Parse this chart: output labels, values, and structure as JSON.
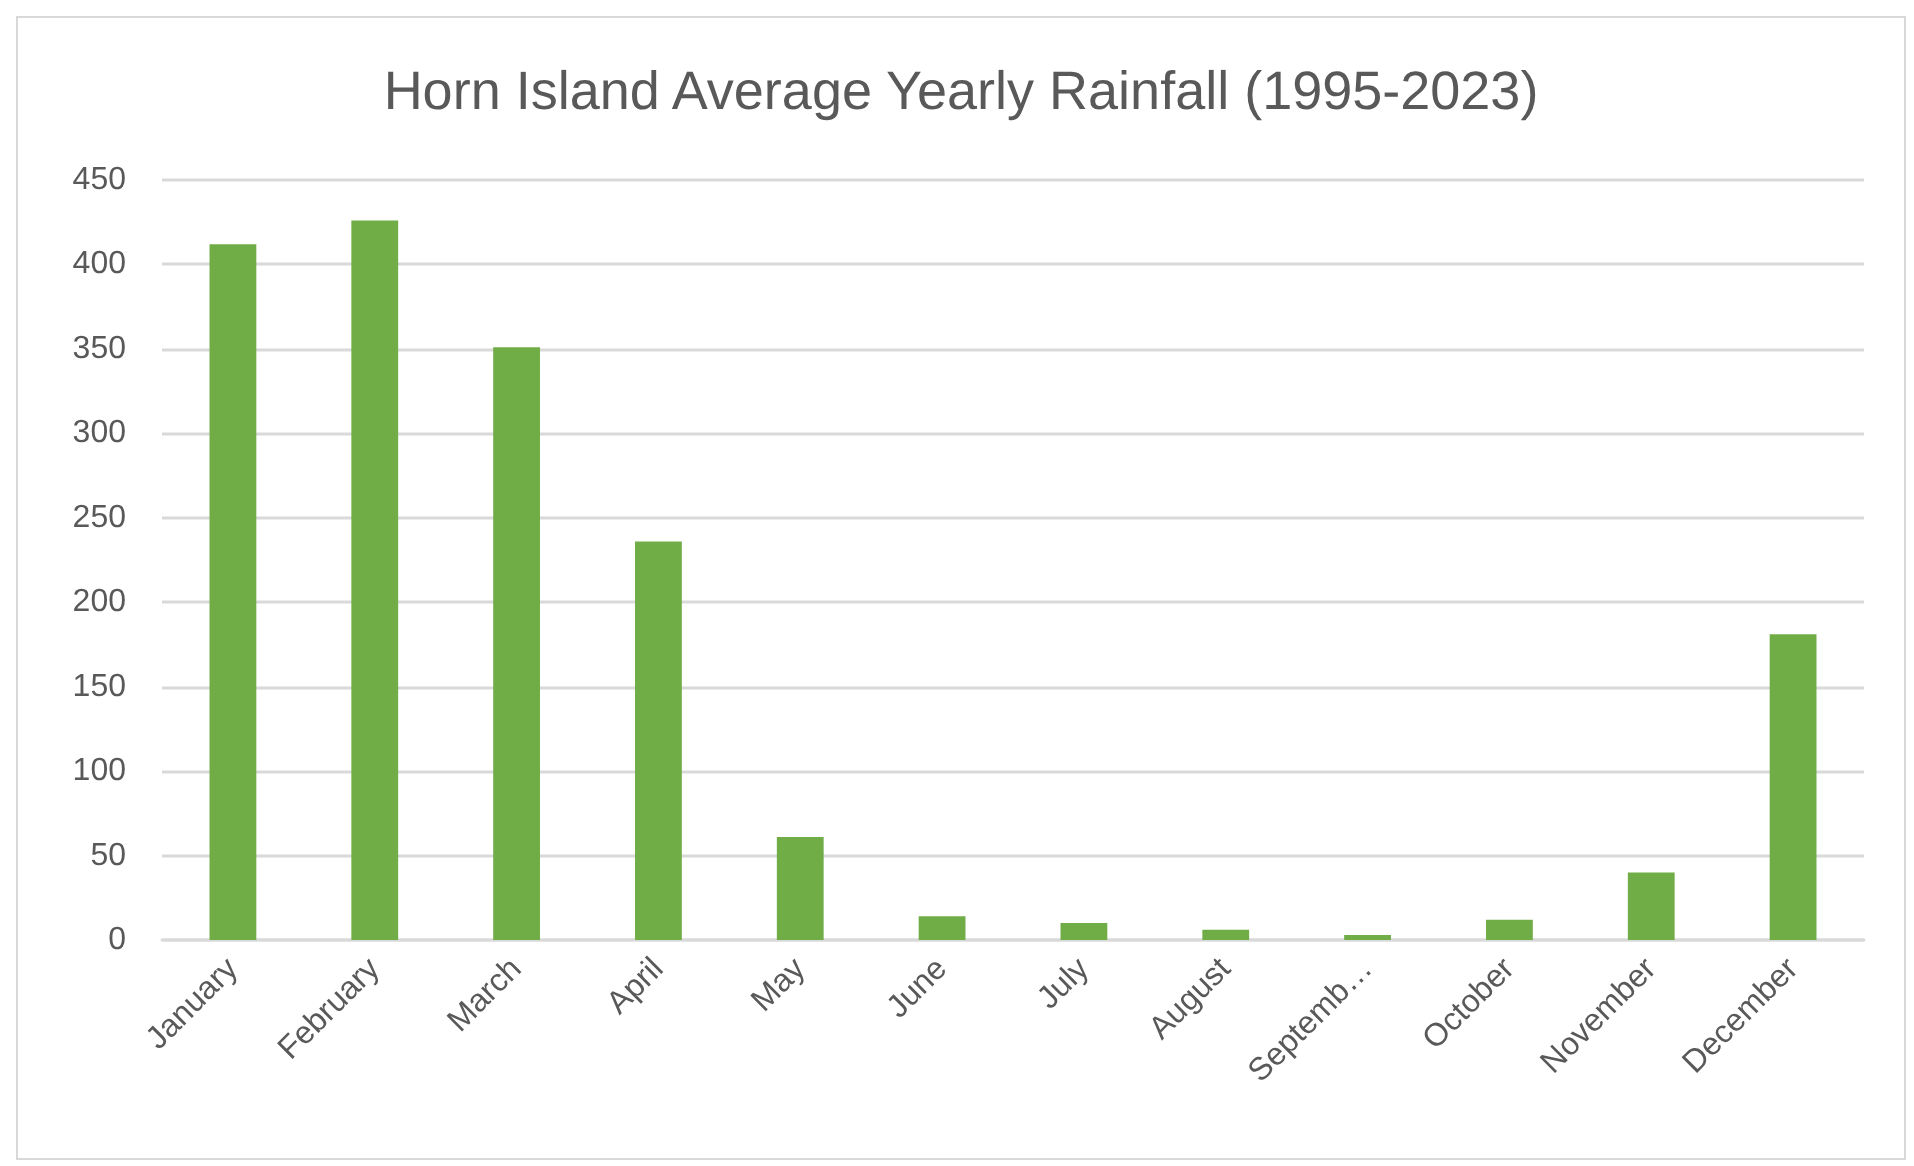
{
  "chart_data": {
    "type": "bar",
    "title": "Horn Island Average Yearly Rainfall (1995-2023)",
    "categories": [
      "January",
      "February",
      "March",
      "April",
      "May",
      "June",
      "July",
      "August",
      "Septemb…",
      "October",
      "November",
      "December"
    ],
    "values": [
      412,
      426,
      351,
      236,
      61,
      14,
      10,
      6,
      3,
      12,
      40,
      181
    ],
    "color": "#70ad47",
    "ylim": [
      0,
      450
    ],
    "yticks": [
      0,
      50,
      100,
      150,
      200,
      250,
      300,
      350,
      400,
      450
    ],
    "grid": "y"
  }
}
